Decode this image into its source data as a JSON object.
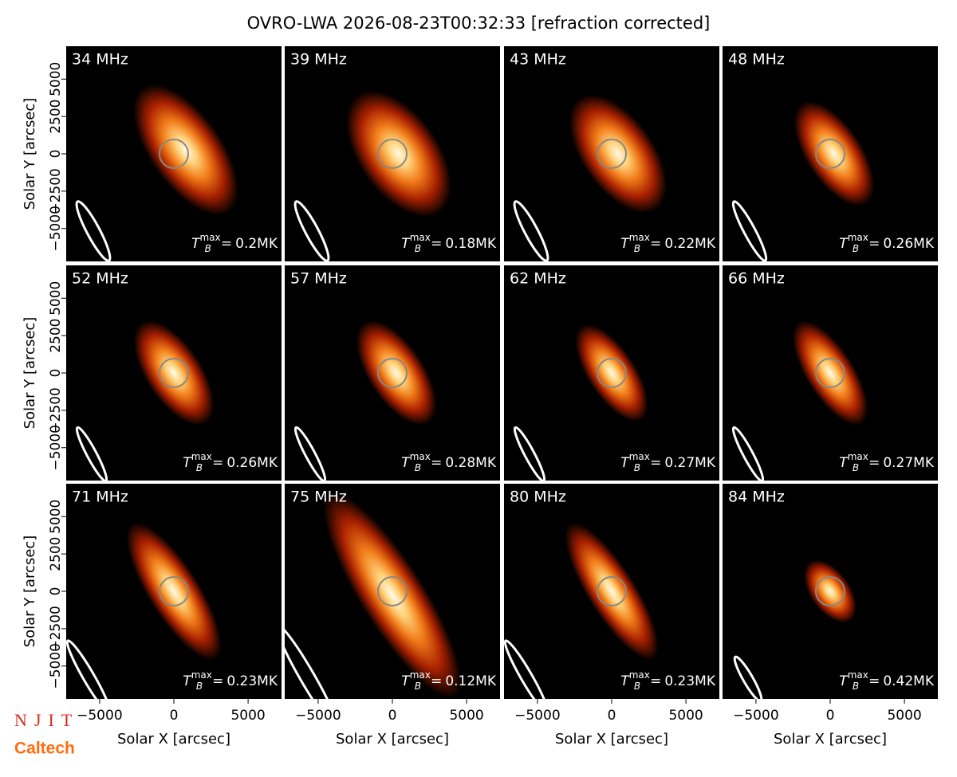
{
  "chart_data": {
    "type": "image-grid",
    "title": "OVRO-LWA 2026-08-23T00:32:33 [refraction corrected]",
    "xlabel": "Solar X [arcsec]",
    "ylabel": "Solar Y [arcsec]",
    "xlim": [
      -7250,
      7250
    ],
    "ylim": [
      -7200,
      7200
    ],
    "xticks": [
      {
        "value": -5000,
        "label": "−5000"
      },
      0,
      5000
    ],
    "yticks": [
      {
        "value": -5000,
        "label": "−5000"
      },
      {
        "value": -2500,
        "label": "−2500"
      },
      0,
      2500,
      5000
    ],
    "tb_symbol": {
      "base": "T",
      "sub": "B",
      "sup": "max",
      "relation": "="
    },
    "panels": [
      {
        "frequency": "34 MHz",
        "tb_max": "0.2MK"
      },
      {
        "frequency": "39 MHz",
        "tb_max": "0.18MK"
      },
      {
        "frequency": "43 MHz",
        "tb_max": "0.22MK"
      },
      {
        "frequency": "48 MHz",
        "tb_max": "0.26MK"
      },
      {
        "frequency": "52 MHz",
        "tb_max": "0.26MK"
      },
      {
        "frequency": "57 MHz",
        "tb_max": "0.28MK"
      },
      {
        "frequency": "62 MHz",
        "tb_max": "0.27MK"
      },
      {
        "frequency": "66 MHz",
        "tb_max": "0.27MK"
      },
      {
        "frequency": "71 MHz",
        "tb_max": "0.23MK"
      },
      {
        "frequency": "75 MHz",
        "tb_max": "0.12MK"
      },
      {
        "frequency": "80 MHz",
        "tb_max": "0.23MK"
      },
      {
        "frequency": "84 MHz",
        "tb_max": "0.42MK"
      }
    ]
  },
  "logos": [
    "NJIT",
    "Caltech"
  ]
}
